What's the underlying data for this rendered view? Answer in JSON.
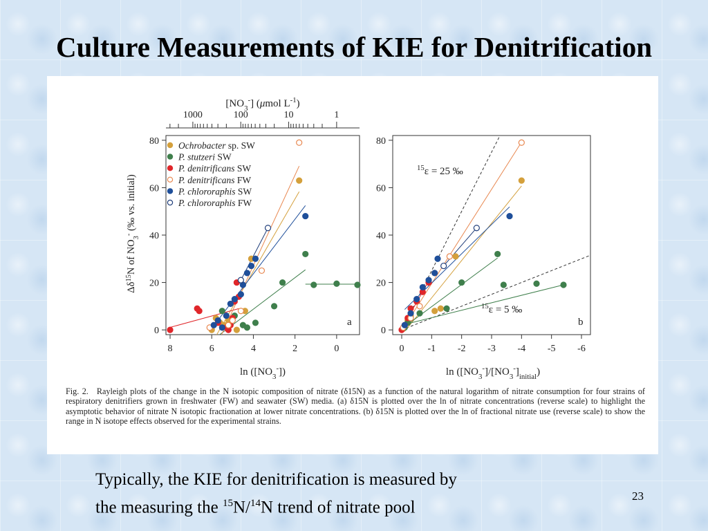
{
  "slide": {
    "title": "Culture Measurements of KIE for Denitrification",
    "bottom_text": {
      "line1": "Typically, the KIE for denitrification is measured by",
      "line2_pre": "the measuring the ",
      "sup1": "15",
      "mid": "N/",
      "sup2": "14",
      "line2_post": "N trend of nitrate pool"
    },
    "page_number": "23"
  },
  "figure": {
    "caption_lead": "Fig. 2.",
    "caption_body": "Rayleigh plots of the change in the N isotopic composition of nitrate (δ15N) as a function of the natural logarithm of nitrate consumption for four strains of respiratory denitrifiers grown in freshwater (FW) and seawater (SW) media. (a) δ15N is plotted over the ln of nitrate concentrations (reverse scale) to highlight the asymptotic behavior of nitrate N isotopic fractionation at lower nitrate concentrations. (b) δ15N is plotted over the ln of fractional nitrate use (reverse scale) to show the range in N isotope effects observed for the experimental strains."
  },
  "chart_data": [
    {
      "type": "scatter",
      "panel_label": "a",
      "xlabel": "ln ([NO3-])",
      "ylabel": "Δδ15N of NO3- (‰ vs. initial)",
      "top_axis_label": "[NO3-] (μmol L-1)",
      "top_axis_ticks": [
        "1000",
        "100",
        "10",
        "1"
      ],
      "top_axis_tick_values": [
        1000,
        100,
        10,
        1
      ],
      "xlim": [
        8.2,
        -1.1
      ],
      "ylim": [
        -2,
        82
      ],
      "x_ticks": [
        8,
        6,
        4,
        2,
        0
      ],
      "y_ticks": [
        0,
        20,
        40,
        60,
        80
      ],
      "grid": false,
      "legend_position": "top-left",
      "legend": [
        {
          "strain": "Ochrobacter",
          "suffix": " sp. SW",
          "color": "#d4a03c",
          "filled": true
        },
        {
          "strain": "P. stutzeri",
          "suffix": " SW",
          "color": "#3f7f4c",
          "filled": true
        },
        {
          "strain": "P. denitrificans",
          "suffix": " SW",
          "color": "#e0262a",
          "filled": true
        },
        {
          "strain": "P. denitrificans",
          "suffix": " FW",
          "color": "#e8874f",
          "filled": false
        },
        {
          "strain": "P. chlororaphis",
          "suffix": " SW",
          "color": "#1f4f9a",
          "filled": true
        },
        {
          "strain": "P. chlororaphis",
          "suffix": " FW",
          "color": "#1f3d7a",
          "filled": false
        }
      ],
      "series": [
        {
          "legend_index": 0,
          "x": [
            6.0,
            5.8,
            5.6,
            5.4,
            5.2,
            4.8,
            4.4,
            4.1,
            1.8
          ],
          "y": [
            0,
            5,
            3,
            2,
            4,
            0,
            8,
            30,
            63
          ]
        },
        {
          "legend_index": 1,
          "x": [
            5.5,
            4.9,
            4.5,
            4.3,
            3.9,
            3.0,
            2.6,
            1.5,
            1.1,
            0.0,
            -1.0
          ],
          "y": [
            8,
            6,
            2,
            1,
            3,
            10,
            20,
            32,
            19,
            19.5,
            19
          ]
        },
        {
          "legend_index": 2,
          "x": [
            8.0,
            6.7,
            6.6,
            5.7,
            5.3,
            5.2,
            5.1,
            5.0,
            4.9,
            4.8,
            4.7
          ],
          "y": [
            0,
            9,
            8,
            3,
            1,
            0,
            2,
            5,
            12,
            20,
            14
          ]
        },
        {
          "legend_index": 3,
          "x": [
            6.1,
            5.2,
            5.0,
            4.6,
            3.6,
            1.8
          ],
          "y": [
            1,
            2,
            4,
            8,
            25,
            79
          ]
        },
        {
          "legend_index": 4,
          "x": [
            5.9,
            5.7,
            5.5,
            5.3,
            5.1,
            4.9,
            4.6,
            4.5,
            4.3,
            4.1,
            3.9,
            1.5
          ],
          "y": [
            2,
            4,
            1,
            6,
            11,
            13,
            15,
            19,
            24,
            27,
            30,
            48
          ]
        },
        {
          "legend_index": 5,
          "x": [
            4.6,
            3.3
          ],
          "y": [
            21,
            43
          ]
        }
      ]
    },
    {
      "type": "scatter",
      "panel_label": "b",
      "xlabel": "ln ([NO3-]/[NO3-]initial)",
      "ylabel": "",
      "xlim": [
        0.3,
        -6.3
      ],
      "ylim": [
        -2,
        82
      ],
      "x_ticks": [
        0,
        -1,
        -2,
        -3,
        -4,
        -5,
        -6
      ],
      "y_ticks": [
        0,
        20,
        40,
        60,
        80
      ],
      "grid": false,
      "reference_lines": [
        {
          "label": "15ε = 25 ‰",
          "slope_eps": 25
        },
        {
          "label": "15ε = 5 ‰",
          "slope_eps": 5
        }
      ],
      "series": [
        {
          "legend_index": 0,
          "x": [
            -0.1,
            -0.2,
            -0.3,
            -1.1,
            -1.3,
            -1.8,
            -4.0
          ],
          "y": [
            2,
            4,
            6,
            8,
            9,
            31,
            63
          ]
        },
        {
          "legend_index": 1,
          "x": [
            -0.1,
            -0.2,
            -0.3,
            -0.6,
            -1.5,
            -2.0,
            -3.2,
            -3.4,
            -4.5,
            -5.4
          ],
          "y": [
            1,
            3,
            5,
            7,
            9,
            20,
            32,
            19,
            19.5,
            19
          ]
        },
        {
          "legend_index": 2,
          "x": [
            0.0,
            -0.1,
            -0.2,
            -0.3,
            -0.5,
            -0.7,
            -0.9
          ],
          "y": [
            0,
            2,
            5,
            9,
            12,
            16,
            20
          ]
        },
        {
          "legend_index": 3,
          "x": [
            -0.05,
            -0.3,
            -0.6,
            -1.1,
            -1.6,
            -4.0
          ],
          "y": [
            1,
            5,
            10,
            24,
            31,
            79
          ]
        },
        {
          "legend_index": 4,
          "x": [
            -0.1,
            -0.3,
            -0.5,
            -0.7,
            -0.9,
            -1.1,
            -1.2,
            -3.6
          ],
          "y": [
            2,
            7,
            13,
            18,
            21,
            24,
            30,
            48
          ]
        },
        {
          "legend_index": 5,
          "x": [
            -1.4,
            -2.5
          ],
          "y": [
            27,
            43
          ]
        }
      ]
    }
  ]
}
